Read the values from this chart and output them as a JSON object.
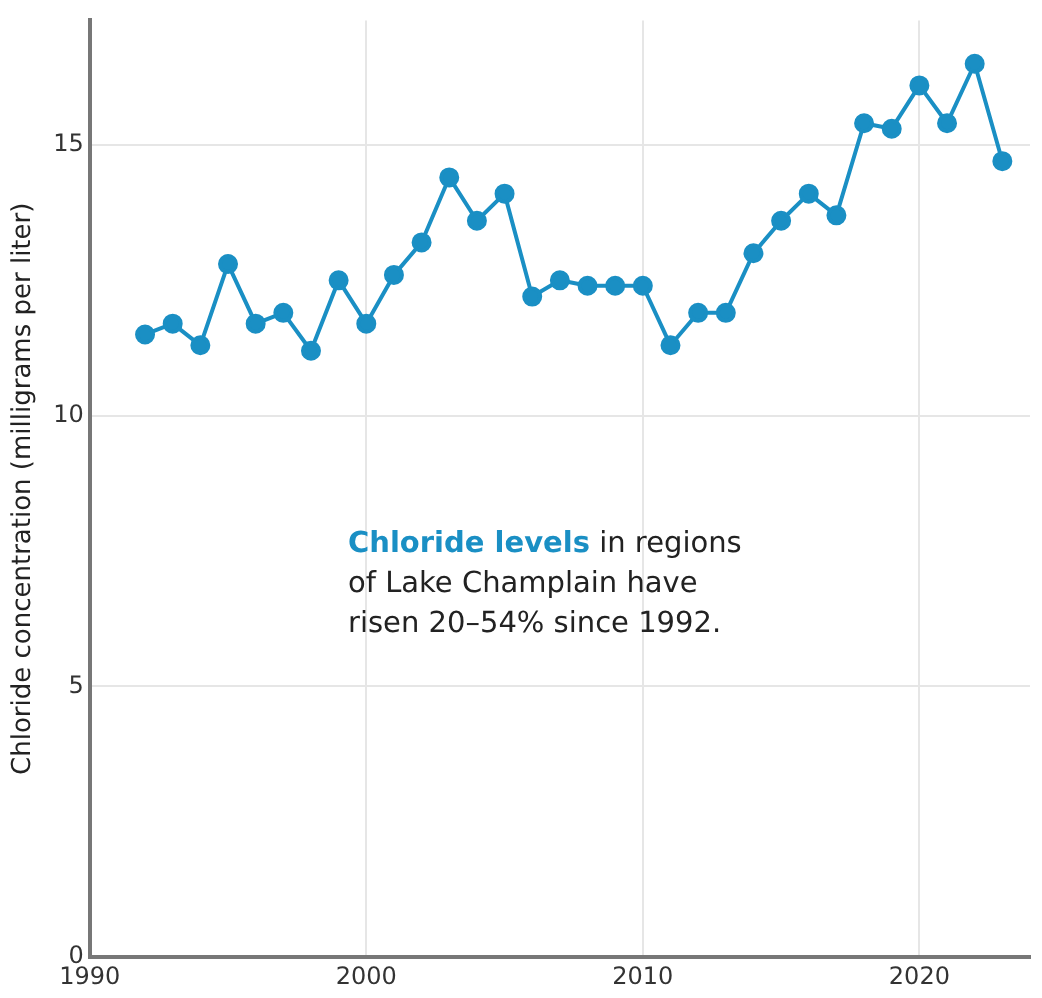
{
  "chart_data": {
    "type": "line",
    "ylabel": "Chloride concentration (milligrams per liter)",
    "annotations": [
      "Chloride levels",
      "in regions of Lake Champlain have risen 20–54% since 1992."
    ],
    "x": [
      1992,
      1993,
      1994,
      1995,
      1996,
      1997,
      1998,
      1999,
      2000,
      2001,
      2002,
      2003,
      2004,
      2005,
      2006,
      2007,
      2008,
      2009,
      2010,
      2011,
      2012,
      2013,
      2014,
      2015,
      2016,
      2017,
      2018,
      2019,
      2020,
      2021,
      2022,
      2023
    ],
    "series": [
      {
        "color": "#1a8fc4",
        "values": [
          11.5,
          11.7,
          11.3,
          12.8,
          11.7,
          11.9,
          11.2,
          12.5,
          11.7,
          12.6,
          13.2,
          14.4,
          13.6,
          14.1,
          12.2,
          12.5,
          12.4,
          12.4,
          12.4,
          11.3,
          11.9,
          11.9,
          13.0,
          13.6,
          14.1,
          13.7,
          15.4,
          15.3,
          16.1,
          15.4,
          16.5,
          14.7
        ]
      }
    ],
    "xlim": [
      1990,
      2024
    ],
    "xticks": [
      1990,
      2000,
      2010,
      2020
    ],
    "ylim": [
      0,
      17.3
    ],
    "yticks": [
      0,
      5,
      10,
      15
    ],
    "grid": true,
    "marker": "circle",
    "line_style": "solid",
    "legend": false
  }
}
